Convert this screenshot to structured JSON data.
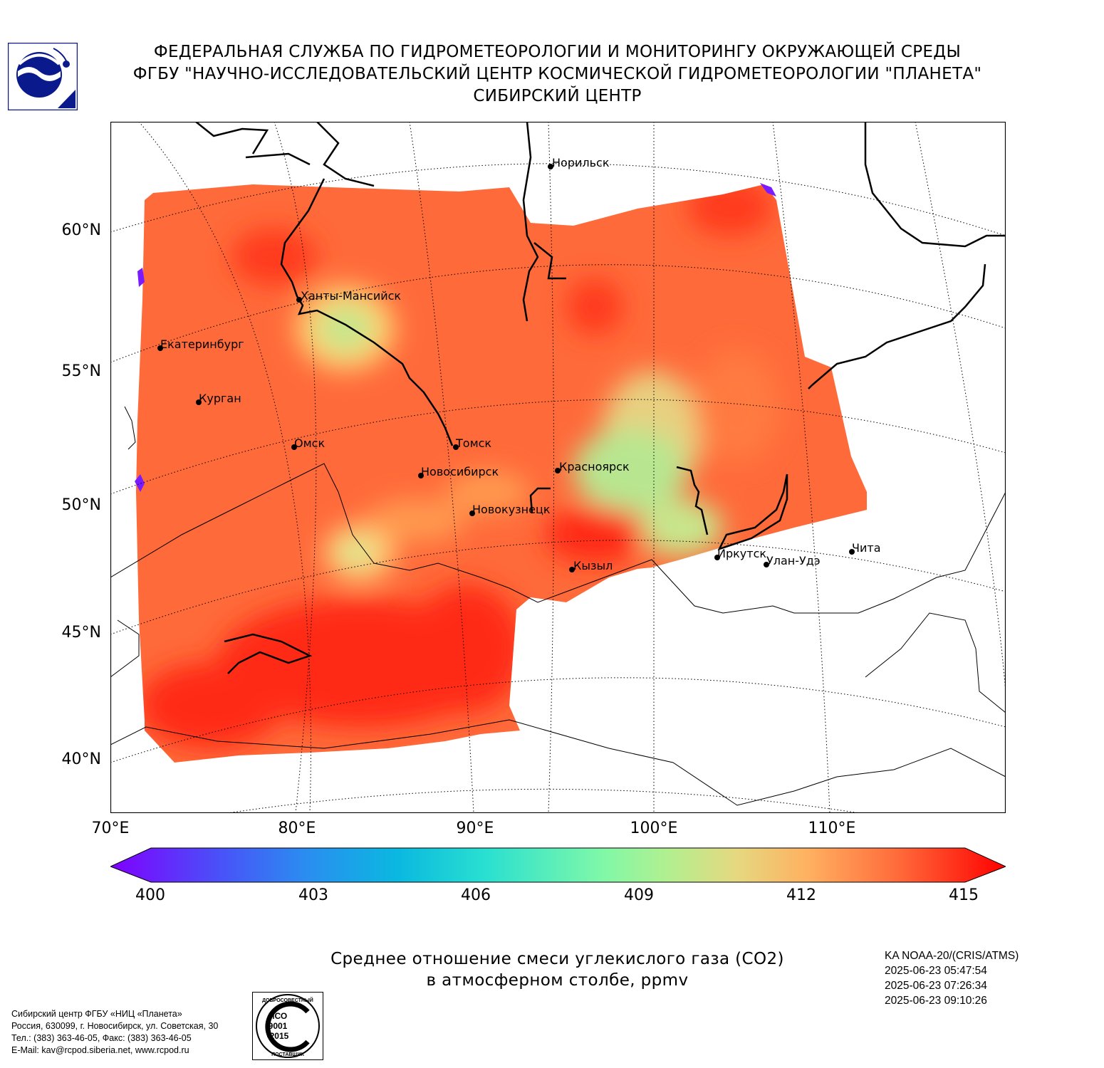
{
  "header": {
    "line1": "ФЕДЕРАЛЬНАЯ СЛУЖБА ПО ГИДРОМЕТЕОРОЛОГИИ И МОНИТОРИНГУ ОКРУЖАЮЩЕЙ СРЕДЫ",
    "line2": "ФГБУ \"НАУЧНО-ИССЛЕДОВАТЕЛЬСКИЙ ЦЕНТР КОСМИЧЕСКОЙ ГИДРОМЕТЕОРОЛОГИИ \"ПЛАНЕТА\"",
    "line3": "СИБИРСКИЙ ЦЕНТР"
  },
  "map": {
    "lat_labels": [
      "60°N",
      "55°N",
      "50°N",
      "45°N",
      "40°N"
    ],
    "lon_labels": [
      "70°E",
      "80°E",
      "90°E",
      "100°E",
      "110°E"
    ],
    "cities": [
      {
        "name": "Норильск"
      },
      {
        "name": "Ханты-Мансийск"
      },
      {
        "name": "Екатеринбург"
      },
      {
        "name": "Курган"
      },
      {
        "name": "Омск"
      },
      {
        "name": "Томск"
      },
      {
        "name": "Новосибирск"
      },
      {
        "name": "Красноярск"
      },
      {
        "name": "Новокузнецк"
      },
      {
        "name": "Иркутск"
      },
      {
        "name": "Улан-Удэ"
      },
      {
        "name": "Чита"
      },
      {
        "name": "Кызыл"
      }
    ],
    "field_colors": {
      "high": "#ff2a12",
      "mid": "#ff6a3a",
      "low": "#c8e68c",
      "min": "#7a1aff"
    }
  },
  "colorbar": {
    "ticks": [
      "400",
      "403",
      "406",
      "409",
      "412",
      "415"
    ],
    "min": 400,
    "max": 415
  },
  "caption": {
    "line1": "Среднее отношение смеси углекислого газа (CO2)",
    "line2": "в атмосферном столбе, ppmv"
  },
  "satellite": {
    "name": "KA NOAA-20/(CRIS/ATMS)",
    "times": [
      "2025-06-23 05:47:54",
      "2025-06-23 07:26:34",
      "2025-06-23 09:10:26"
    ]
  },
  "address": {
    "line1": "Сибирский центр ФГБУ «НИЦ «Планета»",
    "line2": "Россия, 630099, г. Новосибирск, ул. Советская, 30",
    "line3": "Тел.: (383) 363-46-05, Факс: (383) 363-46-05",
    "line4": "E-Mail: kav@rcpod.siberia.net, www.rcpod.ru"
  },
  "iso_badge": {
    "top_text": "ДОБРОСОВЕСТНЫЙ",
    "bottom_text": "ПОСТАВЩИК",
    "line1": "ИСО",
    "line2": "9001",
    "line3": "-2015"
  }
}
